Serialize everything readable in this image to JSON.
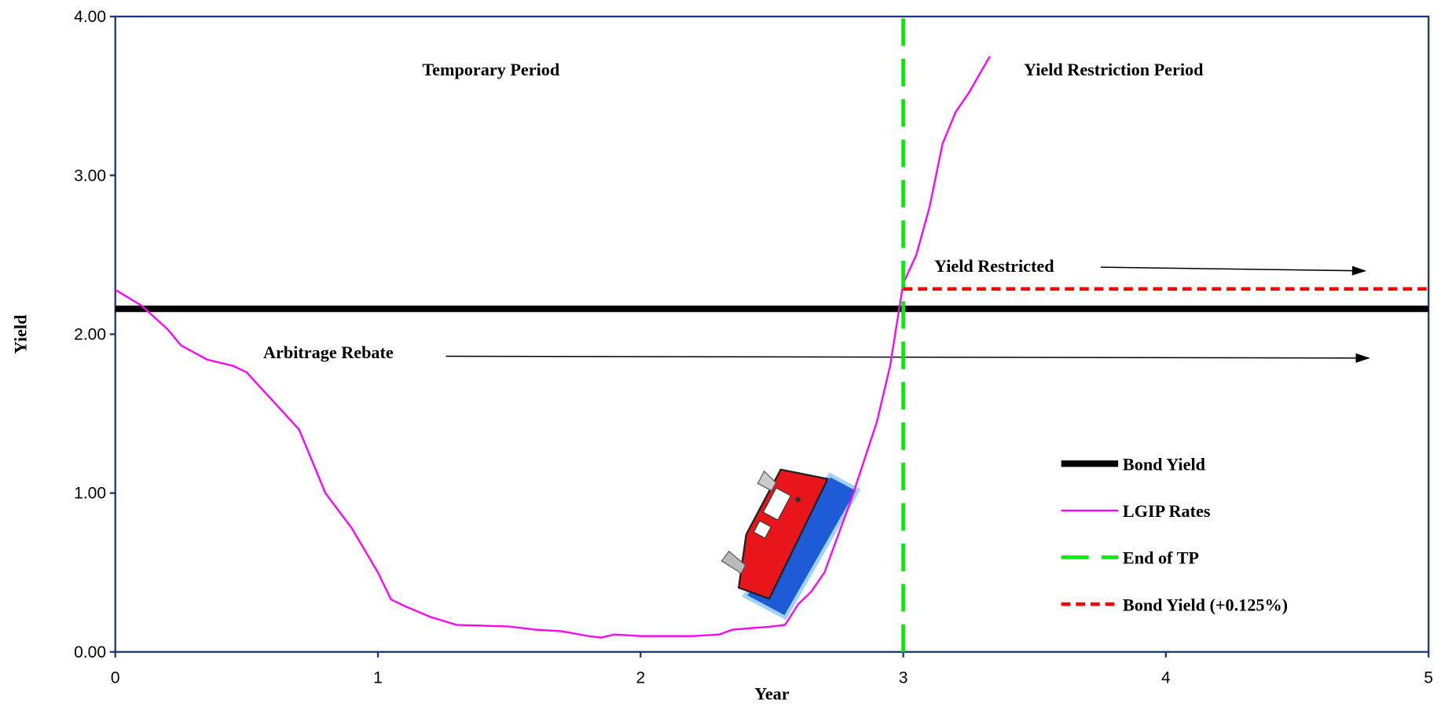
{
  "chart_data": {
    "type": "line",
    "x_label": "Year",
    "y_label": "Yield",
    "xlim": [
      0,
      5
    ],
    "ylim": [
      0,
      4
    ],
    "xticks": [
      0,
      1,
      2,
      3,
      4,
      5
    ],
    "yticks": [
      {
        "value": 0,
        "label": "0.00"
      },
      {
        "value": 1,
        "label": "1.00"
      },
      {
        "value": 2,
        "label": "2.00"
      },
      {
        "value": 3,
        "label": "3.00"
      },
      {
        "value": 4,
        "label": "4.00"
      }
    ],
    "legend_position": "lower right",
    "annotations": [
      "Temporary Period",
      "Yield Restriction Period",
      "Yield Restricted",
      "Arbitrage Rebate"
    ],
    "series": [
      {
        "name": "Bond Yield",
        "color": "#000000",
        "line_style": "solid",
        "x": [
          0,
          5
        ],
        "values": [
          2.16,
          2.16
        ]
      },
      {
        "name": "LGIP Rates",
        "color": "#ff00ff",
        "line_style": "solid",
        "x": [
          0,
          0.1,
          0.2,
          0.25,
          0.35,
          0.45,
          0.5,
          0.6,
          0.7,
          0.8,
          0.9,
          1.0,
          1.05,
          1.1,
          1.2,
          1.3,
          1.5,
          1.6,
          1.7,
          1.8,
          1.85,
          1.9,
          2.0,
          2.2,
          2.3,
          2.35,
          2.5,
          2.55,
          2.6,
          2.65,
          2.7,
          2.8,
          2.9,
          2.95,
          3.0,
          3.05,
          3.1,
          3.15,
          3.2,
          3.25,
          3.33
        ],
        "values": [
          2.28,
          2.18,
          2.03,
          1.93,
          1.84,
          1.8,
          1.76,
          1.58,
          1.4,
          1.0,
          0.78,
          0.5,
          0.33,
          0.29,
          0.22,
          0.17,
          0.16,
          0.14,
          0.13,
          0.1,
          0.09,
          0.11,
          0.1,
          0.1,
          0.11,
          0.14,
          0.16,
          0.17,
          0.3,
          0.38,
          0.5,
          0.95,
          1.45,
          1.8,
          2.32,
          2.5,
          2.8,
          3.2,
          3.4,
          3.52,
          3.75
        ]
      },
      {
        "name": "End of TP",
        "color": "#00ee00",
        "line_style": "dashed",
        "x": [
          3,
          3
        ],
        "values": [
          0,
          4
        ]
      },
      {
        "name": "Bond Yield (+0.125%)",
        "color": "#ff0000",
        "line_style": "dotted",
        "x": [
          3,
          5
        ],
        "values": [
          2.285,
          2.285
        ]
      }
    ]
  }
}
